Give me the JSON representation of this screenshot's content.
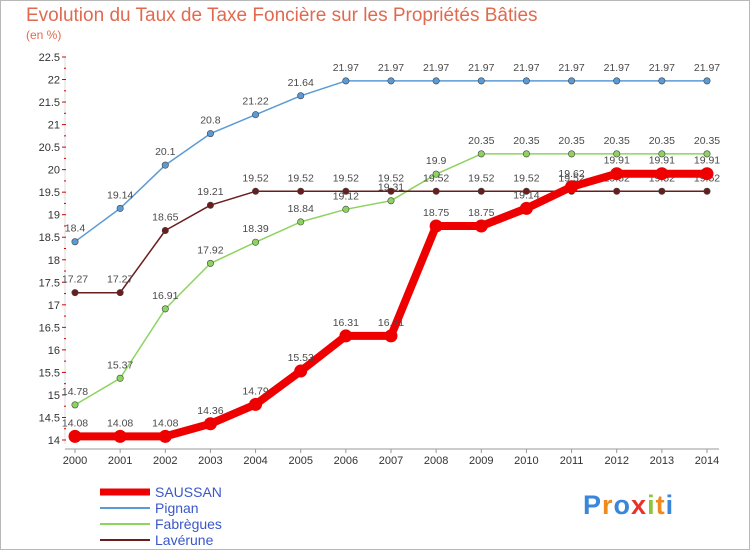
{
  "title": "Evolution du Taux de Taxe Foncière sur les Propriétés Bâties",
  "subtitle": "(en %)",
  "logo": {
    "text": "Proxiti",
    "letters": [
      {
        "ch": "P",
        "color": "#3a86d8"
      },
      {
        "ch": "r",
        "color": "#f08a1c"
      },
      {
        "ch": "o",
        "color": "#3a86d8"
      },
      {
        "ch": "x",
        "color": "#e8322c"
      },
      {
        "ch": "i",
        "color": "#8cc63f"
      },
      {
        "ch": "t",
        "color": "#f08a1c"
      },
      {
        "ch": "i",
        "color": "#3a86d8"
      }
    ]
  },
  "chart_data": {
    "type": "line",
    "title": "Evolution du Taux de Taxe Foncière sur les Propriétés Bâties",
    "ylabel": "(en %)",
    "xlabel": "",
    "x": [
      2000,
      2001,
      2002,
      2003,
      2004,
      2005,
      2006,
      2007,
      2008,
      2009,
      2010,
      2011,
      2012,
      2013,
      2014
    ],
    "ylim": [
      14,
      22.5
    ],
    "yticks": [
      14,
      14.5,
      15,
      15.5,
      16,
      16.5,
      17,
      17.5,
      18,
      18.5,
      19,
      19.5,
      20,
      20.5,
      21,
      21.5,
      22,
      22.5
    ],
    "grid": false,
    "legend_position": "bottom-left",
    "series": [
      {
        "name": "Pignan",
        "color": "#5b9bd5",
        "values": [
          18.4,
          19.14,
          20.1,
          20.8,
          21.22,
          21.64,
          21.97,
          21.97,
          21.97,
          21.97,
          21.97,
          21.97,
          21.97,
          21.97,
          21.97
        ],
        "labels": [
          "18.4",
          "19.14",
          "20.1",
          "20.8",
          "21.22",
          "21.64",
          "21.97",
          "21.97",
          "21.97",
          "21.97",
          "21.97",
          "21.97",
          "21.97",
          "21.97",
          "21.97"
        ]
      },
      {
        "name": "Fabrègues",
        "color": "#8dd35f",
        "values": [
          14.78,
          15.37,
          16.91,
          17.92,
          18.39,
          18.84,
          19.12,
          19.31,
          19.9,
          20.35,
          20.35,
          20.35,
          20.35,
          20.35,
          20.35
        ],
        "labels": [
          "14.78",
          "15.37",
          "16.91",
          "17.92",
          "18.39",
          "18.84",
          "19.12",
          "19.31",
          "19.9",
          "20.35",
          "20.35",
          "20.35",
          "20.35",
          "20.35",
          "20.35"
        ]
      },
      {
        "name": "Lavérune",
        "color": "#6b1d1d",
        "values": [
          17.27,
          17.27,
          18.65,
          19.21,
          19.52,
          19.52,
          19.52,
          19.52,
          19.52,
          19.52,
          19.52,
          19.52,
          19.52,
          19.52,
          19.52
        ],
        "labels": [
          "17.27",
          "17.27",
          "18.65",
          "19.21",
          "19.52",
          "19.52",
          "19.52",
          "19.52",
          "19.52",
          "19.52",
          "19.52",
          "19.52",
          "19.52",
          "19.52",
          "19.52"
        ]
      },
      {
        "name": "SAUSSAN",
        "color": "#ee0000",
        "values": [
          14.08,
          14.08,
          14.08,
          14.36,
          14.79,
          15.53,
          16.31,
          16.31,
          18.75,
          18.75,
          19.14,
          19.62,
          19.91,
          19.91,
          19.91
        ],
        "labels": [
          "14.08",
          "14.08",
          "14.08",
          "14.36",
          "14.79",
          "15.53",
          "16.31",
          "16.31",
          "18.75",
          "18.75",
          "19.14",
          "19.62",
          "19.91",
          "19.91",
          "19.91"
        ]
      }
    ],
    "legend": [
      {
        "name": "SAUSSAN",
        "color": "#ee0000"
      },
      {
        "name": "Pignan",
        "color": "#5b9bd5"
      },
      {
        "name": "Fabrègues",
        "color": "#8dd35f"
      },
      {
        "name": "Lavérune",
        "color": "#6b1d1d"
      }
    ]
  }
}
